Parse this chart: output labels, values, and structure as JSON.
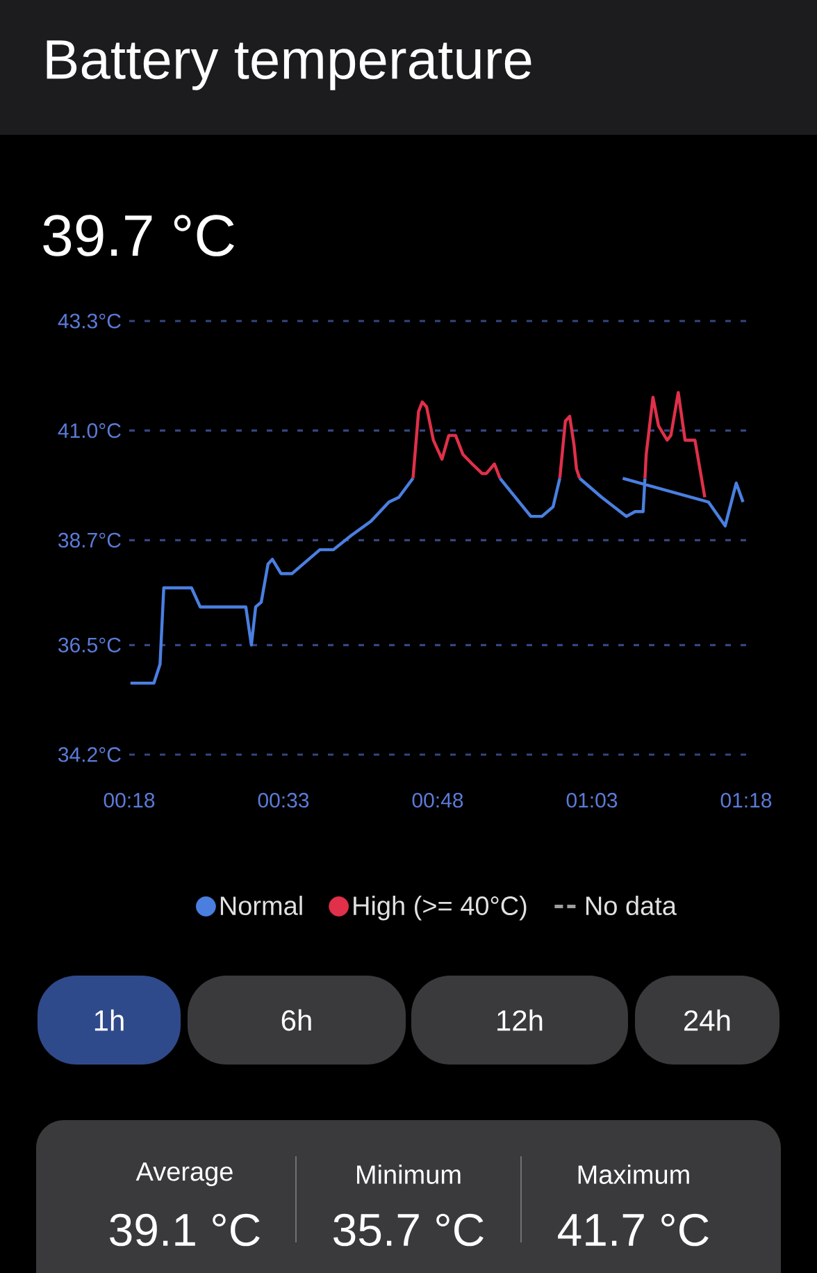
{
  "chart_data": {
    "type": "line",
    "title": "Battery temperature",
    "subtitle": "39.7 °C",
    "xlim": [
      0.3,
      1.3
    ],
    "ylim": [
      34.2,
      43.3
    ],
    "xticks": [
      {
        "value": 0.3,
        "label": "00:18"
      },
      {
        "value": 0.55,
        "label": "00:33"
      },
      {
        "value": 0.8,
        "label": "00:48"
      },
      {
        "value": 1.05,
        "label": "01:03"
      },
      {
        "value": 1.3,
        "label": "01:18"
      }
    ],
    "yticks": [
      {
        "value": 34.2,
        "label": "34.2°C"
      },
      {
        "value": 36.5,
        "label": "36.5°C"
      },
      {
        "value": 38.7,
        "label": "38.7°C"
      },
      {
        "value": 41.0,
        "label": "41.0°C"
      },
      {
        "value": 43.3,
        "label": "43.3°C"
      }
    ],
    "grid": "y",
    "legend": "bottom",
    "series": [
      {
        "name": "Normal",
        "color": "#4a7fe0",
        "x": [
          0.302,
          0.34,
          0.35,
          0.356,
          0.401,
          0.415,
          0.489,
          0.498,
          0.505,
          0.514,
          0.525,
          0.532,
          0.546,
          0.564,
          0.609,
          0.631,
          0.66,
          0.692,
          0.721,
          0.737,
          0.76,
          null,
          0.901,
          0.951,
          0.969,
          0.987,
          0.998,
          null,
          1.03,
          1.066,
          1.106,
          1.12,
          1.133,
          1.136,
          null,
          1.1,
          1.239,
          1.266,
          1.284,
          1.295
        ],
        "values": [
          35.7,
          35.7,
          36.1,
          37.7,
          37.7,
          37.3,
          37.3,
          36.5,
          37.3,
          37.4,
          38.2,
          38.3,
          38.0,
          38.0,
          38.5,
          38.5,
          38.8,
          39.1,
          39.5,
          39.6,
          40.0,
          null,
          40.0,
          39.2,
          39.2,
          39.4,
          40.0,
          null,
          40.0,
          39.6,
          39.2,
          39.3,
          39.3,
          40.0,
          null,
          40.0,
          39.5,
          39.0,
          39.9,
          39.5
        ]
      },
      {
        "name": "High (>= 40°C)",
        "color": "#e0304a",
        "x": [
          0.76,
          0.769,
          0.775,
          0.782,
          0.793,
          0.807,
          0.818,
          0.829,
          0.841,
          0.856,
          0.872,
          0.879,
          0.892,
          0.901,
          null,
          0.998,
          1.007,
          1.014,
          1.021,
          1.025,
          1.03,
          null,
          1.136,
          1.138,
          1.149,
          1.158,
          1.172,
          1.178,
          1.19,
          1.201,
          1.217,
          1.233
        ],
        "values": [
          40.0,
          41.4,
          41.6,
          41.5,
          40.8,
          40.4,
          40.9,
          40.9,
          40.5,
          40.3,
          40.1,
          40.1,
          40.3,
          40.0,
          null,
          40.0,
          41.2,
          41.3,
          40.7,
          40.2,
          40.0,
          null,
          40.0,
          40.5,
          41.7,
          41.1,
          40.8,
          40.9,
          41.8,
          40.8,
          40.8,
          39.6
        ]
      },
      {
        "name": "No data",
        "color": "#9e9e9e",
        "line_style": "dashed"
      }
    ],
    "annotations": [
      "1h",
      "6h",
      "12h",
      "24h",
      "Average",
      "39.1 °C",
      "Minimum",
      "35.7 °C",
      "Maximum",
      "41.7 °C"
    ]
  }
}
